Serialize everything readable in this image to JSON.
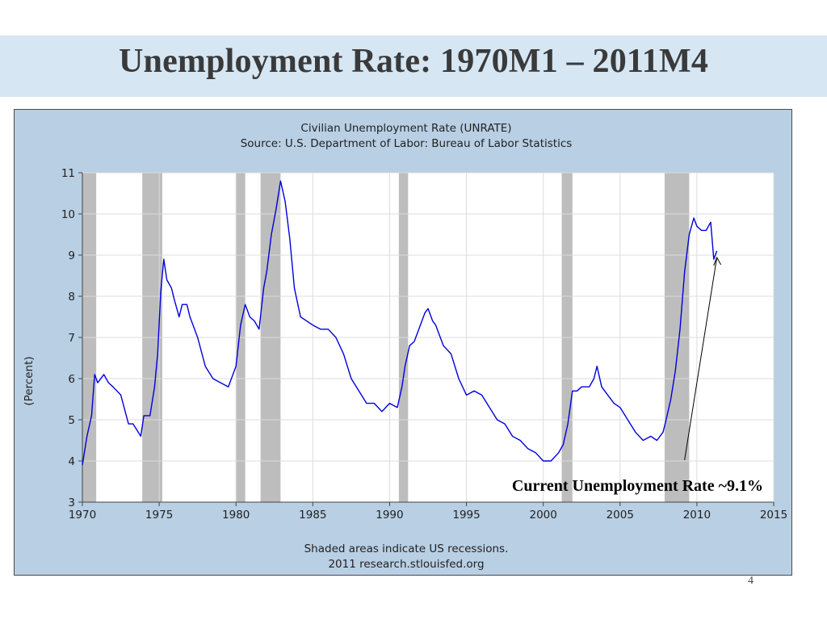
{
  "slide": {
    "title": "Unemployment Rate:  1970M1 – 2011M4",
    "page_number": "4",
    "colors": {
      "title_band": "#d6e6f3",
      "title_text": "#3a3a3a",
      "chart_background": "#b8cfe4"
    }
  },
  "chart_data": {
    "type": "line",
    "title": "Civilian Unemployment Rate (UNRATE)",
    "subtitle": "Source: U.S. Department of Labor: Bureau of Labor Statistics",
    "xlabel": "",
    "ylabel": "(Percent)",
    "xlim": [
      1970,
      2015
    ],
    "ylim": [
      3,
      11
    ],
    "x_ticks": [
      1970,
      1975,
      1980,
      1985,
      1990,
      1995,
      2000,
      2005,
      2010,
      2015
    ],
    "y_ticks": [
      3,
      4,
      5,
      6,
      7,
      8,
      9,
      10,
      11
    ],
    "grid": true,
    "legend": "none",
    "line_color": "#0000dd",
    "recession_color": "#bdbdbd",
    "recessions": [
      [
        1970.0,
        1970.9
      ],
      [
        1973.9,
        1975.2
      ],
      [
        1980.0,
        1980.6
      ],
      [
        1981.6,
        1982.9
      ],
      [
        1990.6,
        1991.2
      ],
      [
        2001.2,
        2001.9
      ],
      [
        2007.9,
        2009.5
      ]
    ],
    "series": [
      {
        "x": [
          1970.0,
          1970.3,
          1970.6,
          1970.8,
          1971.0,
          1971.4,
          1971.7,
          1972.0,
          1972.5,
          1973.0,
          1973.3,
          1973.8,
          1974.0,
          1974.4,
          1974.7,
          1974.9,
          1975.1,
          1975.3,
          1975.5,
          1975.8,
          1976.0,
          1976.3,
          1976.5,
          1976.8,
          1977.0,
          1977.5,
          1978.0,
          1978.5,
          1979.0,
          1979.5,
          1980.0,
          1980.3,
          1980.6,
          1980.9,
          1981.2,
          1981.5,
          1981.8,
          1982.0,
          1982.3,
          1982.6,
          1982.9,
          1983.2,
          1983.5,
          1983.8,
          1984.2,
          1984.6,
          1985.0,
          1985.5,
          1986.0,
          1986.5,
          1987.0,
          1987.5,
          1988.0,
          1988.5,
          1989.0,
          1989.5,
          1990.0,
          1990.5,
          1990.8,
          1991.0,
          1991.3,
          1991.6,
          1992.0,
          1992.3,
          1992.5,
          1992.8,
          1993.0,
          1993.5,
          1994.0,
          1994.5,
          1995.0,
          1995.5,
          1996.0,
          1996.5,
          1997.0,
          1997.5,
          1998.0,
          1998.5,
          1999.0,
          1999.5,
          2000.0,
          2000.5,
          2001.0,
          2001.3,
          2001.6,
          2001.9,
          2002.2,
          2002.5,
          2003.0,
          2003.3,
          2003.5,
          2003.8,
          2004.2,
          2004.6,
          2005.0,
          2005.5,
          2006.0,
          2006.5,
          2007.0,
          2007.4,
          2007.8,
          2008.0,
          2008.3,
          2008.6,
          2008.9,
          2009.2,
          2009.5,
          2009.8,
          2010.0,
          2010.3,
          2010.6,
          2010.9,
          2011.1,
          2011.3
        ],
        "values": [
          3.9,
          4.6,
          5.1,
          6.1,
          5.9,
          6.1,
          5.9,
          5.8,
          5.6,
          4.9,
          4.9,
          4.6,
          5.1,
          5.1,
          5.8,
          6.6,
          8.1,
          8.9,
          8.4,
          8.2,
          7.9,
          7.5,
          7.8,
          7.8,
          7.5,
          7.0,
          6.3,
          6.0,
          5.9,
          5.8,
          6.3,
          7.3,
          7.8,
          7.5,
          7.4,
          7.2,
          8.2,
          8.6,
          9.5,
          10.1,
          10.8,
          10.3,
          9.4,
          8.2,
          7.5,
          7.4,
          7.3,
          7.2,
          7.2,
          7.0,
          6.6,
          6.0,
          5.7,
          5.4,
          5.4,
          5.2,
          5.4,
          5.3,
          5.8,
          6.3,
          6.8,
          6.9,
          7.3,
          7.6,
          7.7,
          7.4,
          7.3,
          6.8,
          6.6,
          6.0,
          5.6,
          5.7,
          5.6,
          5.3,
          5.0,
          4.9,
          4.6,
          4.5,
          4.3,
          4.2,
          4.0,
          4.0,
          4.2,
          4.4,
          4.9,
          5.7,
          5.7,
          5.8,
          5.8,
          6.0,
          6.3,
          5.8,
          5.6,
          5.4,
          5.3,
          5.0,
          4.7,
          4.5,
          4.6,
          4.5,
          4.7,
          5.0,
          5.5,
          6.2,
          7.2,
          8.6,
          9.5,
          9.9,
          9.7,
          9.6,
          9.6,
          9.8,
          8.9,
          9.1
        ]
      }
    ],
    "annotations": [
      {
        "text": "Current Unemployment Rate ~9.1%",
        "points_to": [
          2011.3,
          9.1
        ]
      }
    ],
    "footer_lines": [
      "Shaded areas indicate US recessions.",
      "2011 research.stlouisfed.org"
    ]
  }
}
